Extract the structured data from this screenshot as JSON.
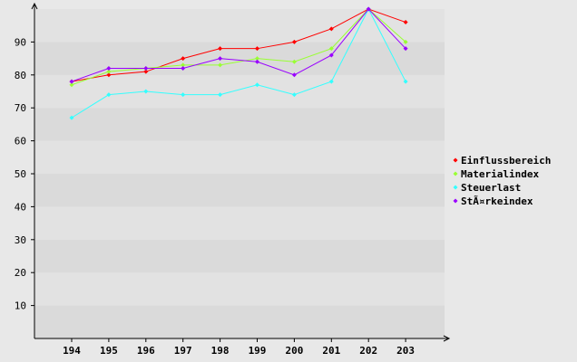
{
  "chart_data": {
    "type": "line",
    "title": "",
    "xlabel": "",
    "ylabel": "",
    "categories": [
      "194",
      "195",
      "196",
      "197",
      "198",
      "199",
      "200",
      "201",
      "202",
      "203"
    ],
    "yticks": [
      "10",
      "20",
      "30",
      "40",
      "50",
      "60",
      "70",
      "80",
      "90"
    ],
    "ylim": [
      0,
      100
    ],
    "grid": "horizontal bands",
    "legend_position": "right",
    "series": [
      {
        "name": "Einflussbereich",
        "color": "#ff0000",
        "values": [
          78,
          80,
          81,
          85,
          88,
          88,
          90,
          94,
          100,
          96
        ]
      },
      {
        "name": "Materialindex",
        "color": "#99ff33",
        "values": [
          77,
          81,
          82,
          83,
          83,
          85,
          84,
          88,
          100,
          90
        ]
      },
      {
        "name": "Steuerlast",
        "color": "#33ffff",
        "values": [
          67,
          74,
          75,
          74,
          74,
          77,
          74,
          78,
          100,
          78
        ]
      },
      {
        "name": "StÃ¤rkeindex",
        "color": "#9900ff",
        "values": [
          78,
          82,
          82,
          82,
          85,
          84,
          80,
          86,
          100,
          88
        ]
      }
    ]
  }
}
